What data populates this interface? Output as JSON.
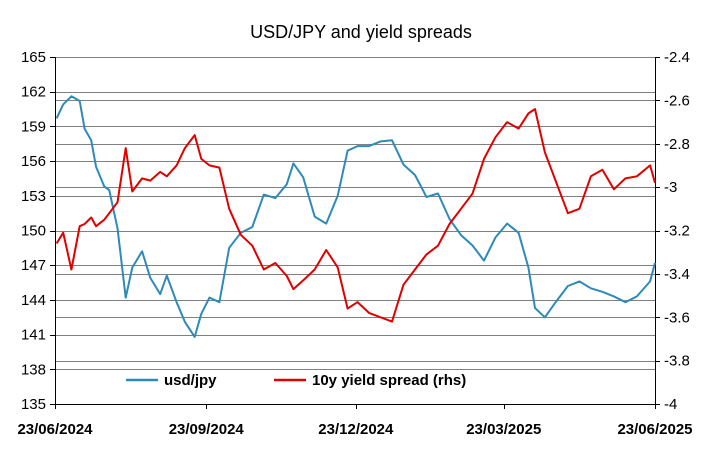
{
  "chart_data": {
    "type": "line",
    "title": "USD/JPY and yield spreads",
    "x_dates": [
      "2024-06-24",
      "2024-06-28",
      "2024-07-03",
      "2024-07-08",
      "2024-07-11",
      "2024-07-15",
      "2024-07-18",
      "2024-07-23",
      "2024-07-26",
      "2024-07-31",
      "2024-08-05",
      "2024-08-09",
      "2024-08-15",
      "2024-08-20",
      "2024-08-26",
      "2024-08-30",
      "2024-09-05",
      "2024-09-10",
      "2024-09-16",
      "2024-09-20",
      "2024-09-25",
      "2024-10-01",
      "2024-10-07",
      "2024-10-14",
      "2024-10-21",
      "2024-10-28",
      "2024-11-04",
      "2024-11-11",
      "2024-11-15",
      "2024-11-21",
      "2024-11-28",
      "2024-12-05",
      "2024-12-12",
      "2024-12-18",
      "2024-12-24",
      "2024-12-31",
      "2025-01-07",
      "2025-01-14",
      "2025-01-21",
      "2025-01-28",
      "2025-02-04",
      "2025-02-11",
      "2025-02-18",
      "2025-02-25",
      "2025-03-04",
      "2025-03-11",
      "2025-03-18",
      "2025-03-25",
      "2025-04-01",
      "2025-04-07",
      "2025-04-11",
      "2025-04-17",
      "2025-04-24",
      "2025-05-01",
      "2025-05-08",
      "2025-05-15",
      "2025-05-22",
      "2025-05-29",
      "2025-06-05",
      "2025-06-12",
      "2025-06-20",
      "2025-06-23"
    ],
    "series": [
      {
        "name": "usd/jpy",
        "axis": "left",
        "color": "#2E8AB8",
        "values": [
          159.7,
          160.9,
          161.6,
          161.2,
          158.8,
          157.8,
          155.5,
          153.8,
          153.5,
          150.2,
          144.2,
          146.8,
          148.2,
          145.9,
          144.5,
          146.1,
          143.8,
          142.1,
          140.8,
          142.8,
          144.2,
          143.8,
          148.5,
          149.8,
          150.3,
          153.1,
          152.8,
          154.0,
          155.8,
          154.6,
          151.2,
          150.6,
          153.0,
          156.9,
          157.3,
          157.3,
          157.7,
          157.8,
          155.7,
          154.8,
          152.9,
          153.2,
          151.0,
          149.6,
          148.7,
          147.4,
          149.4,
          150.6,
          149.8,
          146.8,
          143.3,
          142.5,
          143.9,
          145.2,
          145.6,
          145.0,
          144.7,
          144.3,
          143.8,
          144.3,
          145.6,
          147.2
        ]
      },
      {
        "name": "10y yield spread (rhs)",
        "axis": "right",
        "color": "#E00000",
        "values": [
          -3.26,
          -3.21,
          -3.38,
          -3.18,
          -3.17,
          -3.14,
          -3.18,
          -3.15,
          -3.12,
          -3.07,
          -2.82,
          -3.02,
          -2.96,
          -2.97,
          -2.93,
          -2.95,
          -2.9,
          -2.82,
          -2.76,
          -2.87,
          -2.9,
          -2.91,
          -3.1,
          -3.22,
          -3.27,
          -3.38,
          -3.35,
          -3.41,
          -3.47,
          -3.43,
          -3.38,
          -3.29,
          -3.37,
          -3.56,
          -3.53,
          -3.58,
          -3.6,
          -3.62,
          -3.45,
          -3.38,
          -3.31,
          -3.27,
          -3.17,
          -3.1,
          -3.03,
          -2.87,
          -2.77,
          -2.7,
          -2.73,
          -2.66,
          -2.64,
          -2.84,
          -2.98,
          -3.12,
          -3.1,
          -2.95,
          -2.92,
          -3.01,
          -2.96,
          -2.95,
          -2.9,
          -2.98
        ]
      }
    ],
    "y_left": {
      "min": 135,
      "max": 165,
      "ticks": [
        135,
        138,
        141,
        144,
        147,
        150,
        153,
        156,
        159,
        162,
        165
      ],
      "tick_labels": [
        "135",
        "138",
        "141",
        "144",
        "147",
        "150",
        "153",
        "156",
        "159",
        "162",
        "165"
      ]
    },
    "y_right": {
      "min": -4,
      "max": -2.4,
      "ticks": [
        -4,
        -3.8,
        -3.6,
        -3.4,
        -3.2,
        -3,
        -2.8,
        -2.6,
        -2.4
      ],
      "tick_labels": [
        "-4",
        "-3.8",
        "-3.6",
        "-3.4",
        "-3.2",
        "-3",
        "-2.8",
        "-2.6",
        "-2.4"
      ]
    },
    "x_ticks": [
      {
        "date": "2024-06-23",
        "label": "23/06/2024"
      },
      {
        "date": "2024-09-23",
        "label": "23/09/2024"
      },
      {
        "date": "2024-12-23",
        "label": "23/12/2024"
      },
      {
        "date": "2025-03-23",
        "label": "23/03/2025"
      },
      {
        "date": "2025-06-23",
        "label": "23/06/2025"
      }
    ],
    "x_range": [
      "2024-06-23",
      "2025-06-23"
    ],
    "grid": "horizontal",
    "legend_position": "bottom-center"
  }
}
